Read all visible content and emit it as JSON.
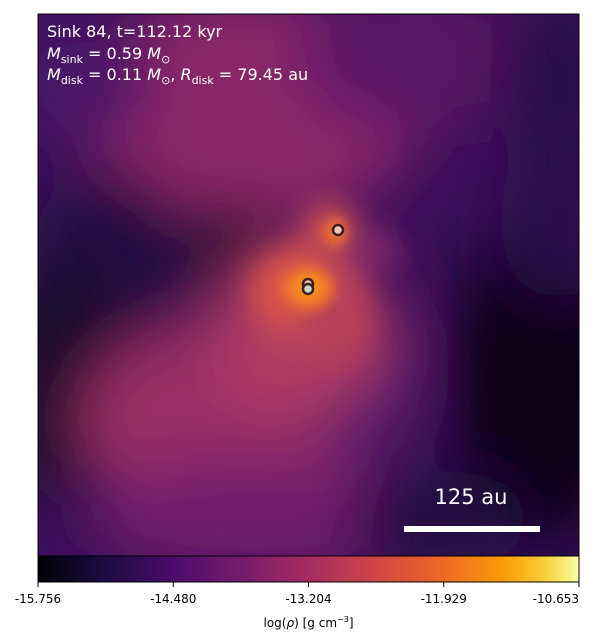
{
  "panel": {
    "line1": "Sink 84, t=112.12 kyr",
    "msink_value": "0.59",
    "mdisk_value": "0.11",
    "rdisk_value": "79.45",
    "rdisk_unit": "au"
  },
  "scale_bar": {
    "label": "125 au"
  },
  "colorbar": {
    "ticks": [
      "-15.756",
      "-14.480",
      "-13.204",
      "-11.929",
      "-10.653"
    ],
    "label_prefix": "log(",
    "label_units": ") [g cm",
    "label_exp": "−3",
    "label_suffix": "]",
    "colormap": "inferno-like"
  },
  "sinks": [
    {
      "name": "sink-primary",
      "fill": "#cfd8c8"
    },
    {
      "name": "sink-companion",
      "fill": "#f0c8b8"
    },
    {
      "name": "sink-secondary",
      "fill": "#e8c0b0"
    }
  ],
  "colors": {
    "background_dark": "#07051a",
    "mid_magenta": "#a8306a",
    "peak_orange": "#f2782a",
    "peak_yellow": "#fbf7a0"
  }
}
